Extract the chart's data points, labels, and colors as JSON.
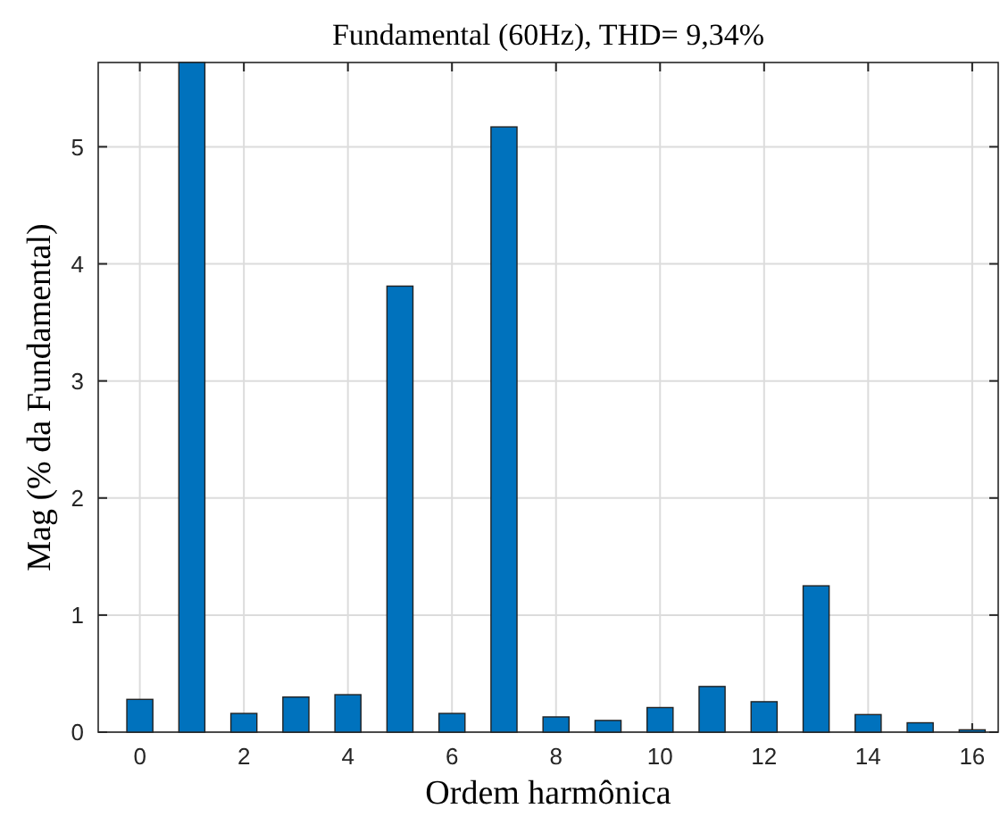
{
  "chart_data": {
    "type": "bar",
    "title": "Fundamental (60Hz), THD= 9,34%",
    "xlabel": "Ordem harmônica",
    "ylabel": "Mag (% da Fundamental)",
    "x": [
      0,
      1,
      2,
      3,
      4,
      5,
      6,
      7,
      8,
      9,
      10,
      11,
      12,
      13,
      14,
      15,
      16
    ],
    "values": [
      0.28,
      5.72,
      0.16,
      0.3,
      0.32,
      3.81,
      0.16,
      5.17,
      0.13,
      0.1,
      0.21,
      0.39,
      0.26,
      1.25,
      0.15,
      0.08,
      0.02
    ],
    "color": "#0072bd",
    "xlim": [
      -0.8,
      16.5
    ],
    "xticks": [
      0,
      2,
      4,
      6,
      8,
      10,
      12,
      14,
      16
    ],
    "ylim": [
      0,
      5.72
    ],
    "yticks": [
      0,
      1,
      2,
      3,
      4,
      5
    ],
    "grid": true
  }
}
